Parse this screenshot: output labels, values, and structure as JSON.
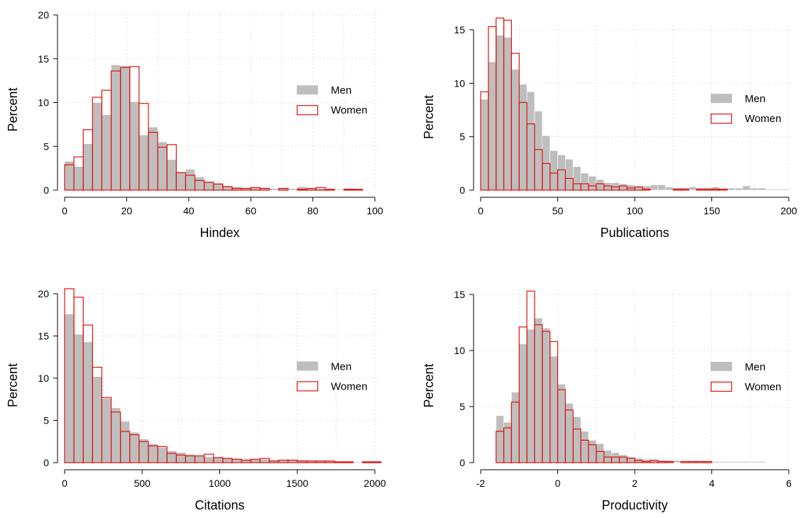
{
  "colors": {
    "men_fill": "#bebebe",
    "women_stroke": "#e3120b",
    "axis": "#000000",
    "grid": "#c8c8c8"
  },
  "legend": {
    "men": "Men",
    "women": "Women"
  },
  "chart_data": [
    {
      "type": "bar",
      "title": "",
      "xlabel": "Hindex",
      "ylabel": "Percent",
      "xlim": [
        0,
        100
      ],
      "ylim": [
        0,
        20
      ],
      "xticks": [
        "0",
        "20",
        "40",
        "60",
        "80",
        "100"
      ],
      "yticks": [
        "0",
        "5",
        "10",
        "15",
        "20"
      ],
      "bin_start": 0,
      "bin_width": 3,
      "grid": true,
      "legend_position": "right",
      "series": [
        {
          "name": "Men",
          "style": "filled",
          "values": [
            3.3,
            2.7,
            5.3,
            10.0,
            8.6,
            14.3,
            14.2,
            10.1,
            6.3,
            7.2,
            5.5,
            3.5,
            2.1,
            2.4,
            1.5,
            1.0,
            0.8,
            0.5,
            0.4,
            0.3,
            0.3,
            0.3,
            0.2,
            0.3,
            0.2,
            0.4,
            0.2,
            0.2,
            0.1,
            0.1,
            0.2,
            0.1
          ]
        },
        {
          "name": "Women",
          "style": "outline",
          "values": [
            2.9,
            3.8,
            6.9,
            10.6,
            11.4,
            13.6,
            14.0,
            14.1,
            9.9,
            6.6,
            4.9,
            5.2,
            2.0,
            1.7,
            1.1,
            0.9,
            0.7,
            0.4,
            0.2,
            0.2,
            0.3,
            0.2,
            0.0,
            0.2,
            0.0,
            0.1,
            0.2,
            0.3,
            0.1,
            0.0,
            0.1,
            0.1
          ]
        }
      ]
    },
    {
      "type": "bar",
      "title": "",
      "xlabel": "Publications",
      "ylabel": "Percent",
      "xlim": [
        0,
        200
      ],
      "ylim": [
        0,
        15
      ],
      "xticks": [
        "0",
        "50",
        "100",
        "150",
        "200"
      ],
      "yticks": [
        "0",
        "5",
        "10",
        "15"
      ],
      "bin_start": 0,
      "bin_width": 5,
      "grid": true,
      "legend_position": "right",
      "series": [
        {
          "name": "Men",
          "style": "filled",
          "values": [
            8.5,
            12.0,
            14.5,
            14.3,
            11.3,
            9.9,
            9.2,
            7.4,
            5.1,
            3.7,
            3.3,
            2.9,
            2.2,
            1.6,
            1.3,
            1.0,
            0.7,
            0.7,
            0.6,
            0.5,
            0.4,
            0.4,
            0.5,
            0.5,
            0.3,
            0.2,
            0.2,
            0.3,
            0.2,
            0.2,
            0.3,
            0.1,
            0.2,
            0.2,
            0.4,
            0.2,
            0.2,
            0.1,
            0.1,
            0.1
          ]
        },
        {
          "name": "Women",
          "style": "outline",
          "values": [
            9.2,
            15.3,
            16.1,
            15.9,
            12.8,
            8.2,
            6.2,
            3.8,
            2.5,
            1.6,
            1.9,
            1.1,
            0.6,
            0.6,
            0.4,
            0.6,
            0.4,
            0.3,
            0.4,
            0.2,
            0.3,
            0.1,
            0.0,
            0.0,
            0.0,
            0.1,
            0.1,
            0.0,
            0.1,
            0.1,
            0.1,
            0.1,
            0.0,
            0.0,
            0.0,
            0.0,
            0.0,
            0.0,
            0.0,
            0.0
          ]
        }
      ]
    },
    {
      "type": "bar",
      "title": "",
      "xlabel": "Citations",
      "ylabel": "Percent",
      "xlim": [
        0,
        2000
      ],
      "ylim": [
        0,
        20
      ],
      "xticks": [
        "0",
        "500",
        "1000",
        "1500",
        "2000"
      ],
      "yticks": [
        "0",
        "5",
        "10",
        "15",
        "20"
      ],
      "bin_start": 0,
      "bin_width": 60,
      "grid": true,
      "legend_position": "right",
      "series": [
        {
          "name": "Men",
          "style": "filled",
          "values": [
            17.6,
            15.2,
            14.3,
            10.2,
            7.6,
            6.5,
            4.9,
            3.6,
            2.8,
            2.2,
            1.8,
            1.4,
            1.2,
            1.0,
            0.9,
            0.7,
            0.6,
            0.6,
            0.5,
            0.4,
            0.4,
            0.4,
            0.3,
            0.3,
            0.3,
            0.3,
            0.2,
            0.2,
            0.2,
            0.1,
            0.1,
            0.1,
            0.1,
            0.1
          ]
        },
        {
          "name": "Women",
          "style": "outline",
          "values": [
            20.6,
            19.6,
            16.3,
            11.3,
            7.7,
            6.0,
            3.7,
            3.3,
            2.5,
            2.0,
            1.9,
            1.1,
            0.9,
            0.8,
            0.8,
            1.0,
            0.6,
            0.5,
            0.4,
            0.3,
            0.4,
            0.5,
            0.2,
            0.3,
            0.3,
            0.2,
            0.2,
            0.2,
            0.2,
            0.1,
            0.1,
            0.0,
            0.1,
            0.1
          ]
        }
      ]
    },
    {
      "type": "bar",
      "title": "",
      "xlabel": "Productivity",
      "ylabel": "Percent",
      "xlim": [
        -2,
        6
      ],
      "ylim": [
        0,
        15
      ],
      "xticks": [
        "-2",
        "0",
        "2",
        "4",
        "6"
      ],
      "yticks": [
        "0",
        "5",
        "10",
        "15"
      ],
      "bin_start": -1.6,
      "bin_width": 0.2,
      "grid": true,
      "legend_position": "right",
      "series": [
        {
          "name": "Men",
          "style": "filled",
          "values": [
            4.2,
            3.6,
            6.3,
            10.6,
            11.9,
            12.9,
            12.0,
            9.5,
            7.0,
            5.3,
            4.1,
            2.8,
            2.0,
            1.7,
            1.1,
            0.9,
            0.7,
            0.5,
            0.4,
            0.3,
            0.3,
            0.2,
            0.2,
            0.2,
            0.1,
            0.1,
            0.1,
            0.1,
            0.1,
            0.1,
            0.1,
            0.1,
            0.1,
            0.1,
            0.1,
            0.0,
            0.0,
            0.0
          ]
        },
        {
          "name": "Women",
          "style": "outline",
          "values": [
            2.8,
            3.1,
            5.4,
            12.1,
            15.3,
            12.3,
            11.7,
            10.8,
            6.5,
            4.7,
            3.0,
            2.0,
            1.6,
            1.0,
            0.5,
            0.5,
            0.5,
            0.4,
            0.2,
            0.1,
            0.2,
            0.1,
            0.1,
            0.0,
            0.1,
            0.1,
            0.1,
            0.1,
            0.0,
            0.0,
            0.0,
            0.0,
            0.0,
            0.0,
            0.0,
            0.0,
            0.0,
            0.0
          ]
        }
      ]
    }
  ]
}
